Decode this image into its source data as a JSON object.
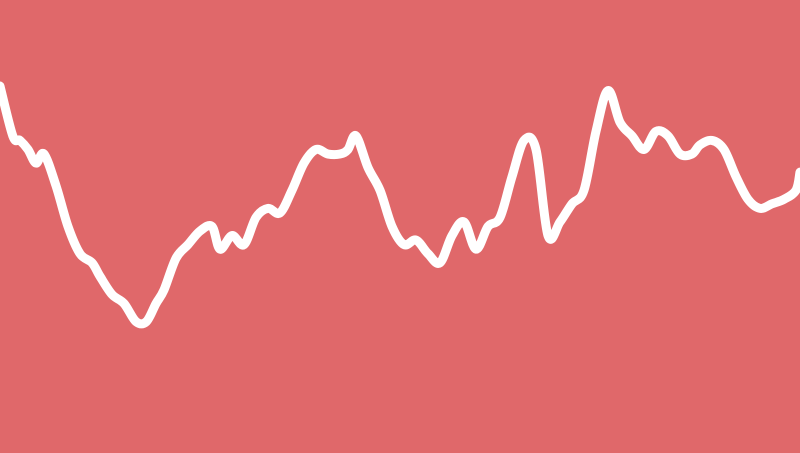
{
  "chart_data": {
    "type": "line",
    "title": "",
    "xlabel": "",
    "ylabel": "",
    "grid": false,
    "legend": false,
    "colors": {
      "background": "#E0686A",
      "line": "#FFFFFF"
    },
    "xlim": [
      0,
      100
    ],
    "ylim": [
      0,
      100
    ],
    "series": [
      {
        "x": [
          0,
          1.6,
          2.5,
          3.5,
          4.5,
          5.5,
          7,
          8.5,
          10,
          11.5,
          12.5,
          14,
          15.5,
          17,
          18.3,
          19.5,
          20.5,
          22,
          23.5,
          25,
          26.5,
          27.5,
          29,
          30.5,
          32,
          33.5,
          35,
          36.5,
          38,
          39.5,
          41,
          42.5,
          43.5,
          44.5,
          46,
          47.5,
          49,
          50.5,
          52,
          53.5,
          55,
          56.5,
          58,
          59.5,
          61,
          62.5,
          64,
          65.5,
          67,
          68.5,
          70,
          71.5,
          73,
          74.5,
          76,
          77.5,
          79,
          80.5,
          82,
          83.5,
          85,
          86.5,
          87.5,
          89,
          90.5,
          92,
          93.5,
          95,
          96.5,
          98,
          99.5,
          100
        ],
        "y": [
          81,
          70,
          69,
          67,
          64,
          66,
          59,
          50,
          44,
          42,
          39,
          35,
          33,
          29,
          29,
          33,
          36,
          43,
          46,
          49,
          50,
          45,
          48,
          46,
          52,
          54,
          53,
          58,
          64,
          67,
          66,
          66,
          67,
          70,
          63,
          58,
          50,
          46,
          47,
          44,
          42,
          48,
          51,
          45,
          50,
          52,
          61,
          69,
          67,
          48,
          51,
          55,
          58,
          71,
          80,
          73,
          70,
          67,
          71,
          70,
          66,
          66,
          68,
          69,
          67,
          61,
          56,
          54,
          55,
          56,
          58,
          62
        ]
      }
    ]
  }
}
